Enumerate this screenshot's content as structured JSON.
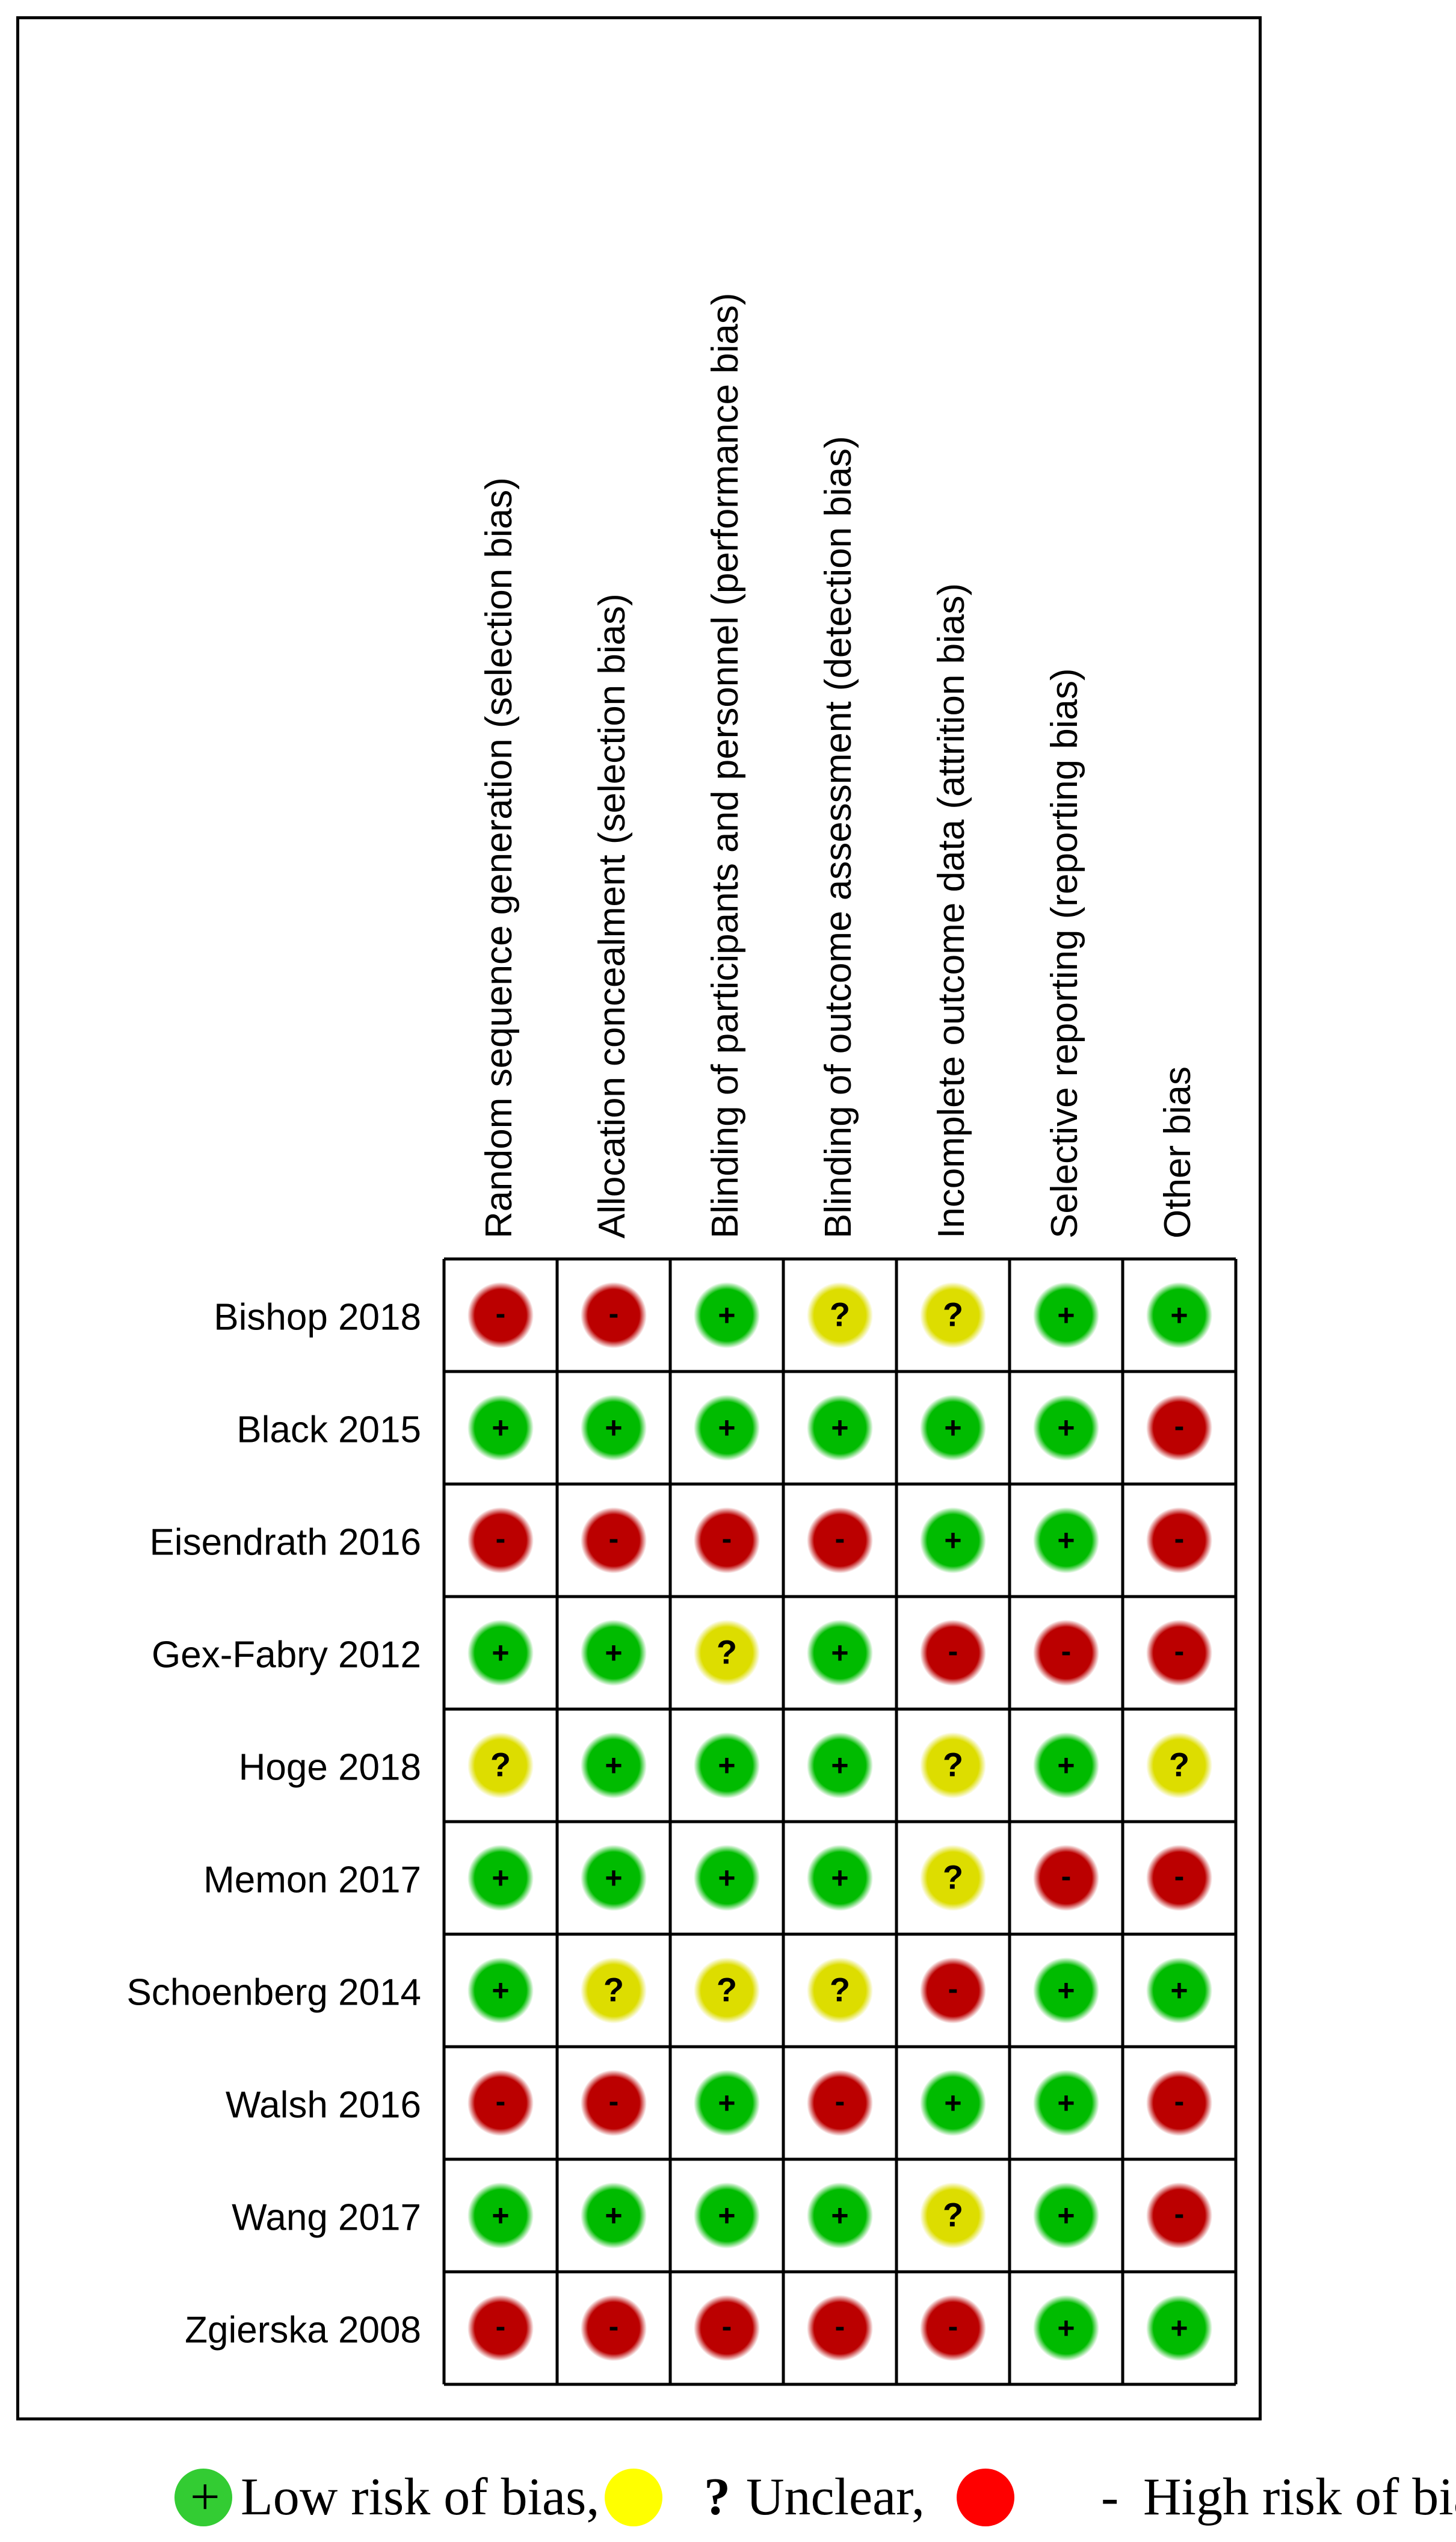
{
  "chart_data": {
    "type": "table",
    "domains": [
      "Random sequence generation (selection bias)",
      "Allocation concealment (selection bias)",
      "Blinding of participants and personnel (performance bias)",
      "Blinding of outcome assessment (detection bias)",
      "Incomplete outcome data (attrition bias)",
      "Selective reporting (reporting bias)",
      "Other bias"
    ],
    "studies": [
      {
        "name": "Bishop 2018",
        "ratings": [
          "-",
          "-",
          "+",
          "?",
          "?",
          "+",
          "+"
        ]
      },
      {
        "name": "Black 2015",
        "ratings": [
          "+",
          "+",
          "+",
          "+",
          "+",
          "+",
          "-"
        ]
      },
      {
        "name": "Eisendrath 2016",
        "ratings": [
          "-",
          "-",
          "-",
          "-",
          "+",
          "+",
          "-"
        ]
      },
      {
        "name": "Gex-Fabry 2012",
        "ratings": [
          "+",
          "+",
          "?",
          "+",
          "-",
          "-",
          "-"
        ]
      },
      {
        "name": "Hoge 2018",
        "ratings": [
          "?",
          "+",
          "+",
          "+",
          "?",
          "+",
          "?"
        ]
      },
      {
        "name": "Memon 2017",
        "ratings": [
          "+",
          "+",
          "+",
          "+",
          "?",
          "-",
          "-"
        ]
      },
      {
        "name": "Schoenberg 2014",
        "ratings": [
          "+",
          "?",
          "?",
          "?",
          "-",
          "+",
          "+"
        ]
      },
      {
        "name": "Walsh 2016",
        "ratings": [
          "-",
          "-",
          "+",
          "-",
          "+",
          "+",
          "-"
        ]
      },
      {
        "name": "Wang 2017",
        "ratings": [
          "+",
          "+",
          "+",
          "+",
          "?",
          "+",
          "-"
        ]
      },
      {
        "name": "Zgierska 2008",
        "ratings": [
          "-",
          "-",
          "-",
          "-",
          "-",
          "+",
          "+"
        ]
      }
    ],
    "rating_colors": {
      "+": "#00bb00",
      "?": "#dddd00",
      "-": "#bb0000"
    }
  },
  "legend": {
    "low": {
      "symbol": "+",
      "label": "Low risk of bias,",
      "color": "#33cc33"
    },
    "unclear": {
      "symbol": "?",
      "label": "Unclear,",
      "color": "#ffff00"
    },
    "high": {
      "symbol": "-",
      "label": "High risk of bias",
      "color": "#ff0000"
    }
  }
}
